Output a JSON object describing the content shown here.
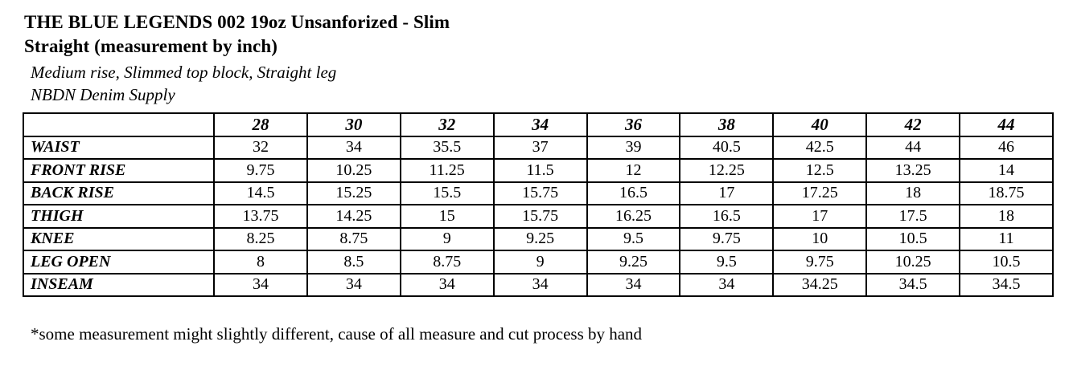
{
  "header": {
    "title": "THE BLUE LEGENDS 002 19oz Unsanforized - Slim Straight (measurement by inch)",
    "subtitle_fit": "Medium rise, Slimmed top block, Straight leg",
    "subtitle_brand": "NBDN Denim Supply"
  },
  "chart_data": {
    "type": "table",
    "title": "THE BLUE LEGENDS 002 19oz Unsanforized - Slim Straight (measurement by inch)",
    "columns": [
      "",
      "28",
      "30",
      "32",
      "34",
      "36",
      "38",
      "40",
      "42",
      "44"
    ],
    "rows": [
      {
        "label": "WAIST",
        "values": [
          "32",
          "34",
          "35.5",
          "37",
          "39",
          "40.5",
          "42.5",
          "44",
          "46"
        ]
      },
      {
        "label": "FRONT RISE",
        "values": [
          "9.75",
          "10.25",
          "11.25",
          "11.5",
          "12",
          "12.25",
          "12.5",
          "13.25",
          "14"
        ]
      },
      {
        "label": "BACK RISE",
        "values": [
          "14.5",
          "15.25",
          "15.5",
          "15.75",
          "16.5",
          "17",
          "17.25",
          "18",
          "18.75"
        ]
      },
      {
        "label": "THIGH",
        "values": [
          "13.75",
          "14.25",
          "15",
          "15.75",
          "16.25",
          "16.5",
          "17",
          "17.5",
          "18"
        ]
      },
      {
        "label": "KNEE",
        "values": [
          "8.25",
          "8.75",
          "9",
          "9.25",
          "9.5",
          "9.75",
          "10",
          "10.5",
          "11"
        ]
      },
      {
        "label": "LEG OPEN",
        "values": [
          "8",
          "8.5",
          "8.75",
          "9",
          "9.25",
          "9.5",
          "9.75",
          "10.25",
          "10.5"
        ]
      },
      {
        "label": "INSEAM",
        "values": [
          "34",
          "34",
          "34",
          "34",
          "34",
          "34",
          "34.25",
          "34.5",
          "34.5"
        ]
      }
    ]
  },
  "footnote": "*some measurement might slightly different, cause of all measure and cut process by hand",
  "colors": {
    "text": "#000000",
    "background": "#ffffff",
    "table_border": "#000000"
  }
}
